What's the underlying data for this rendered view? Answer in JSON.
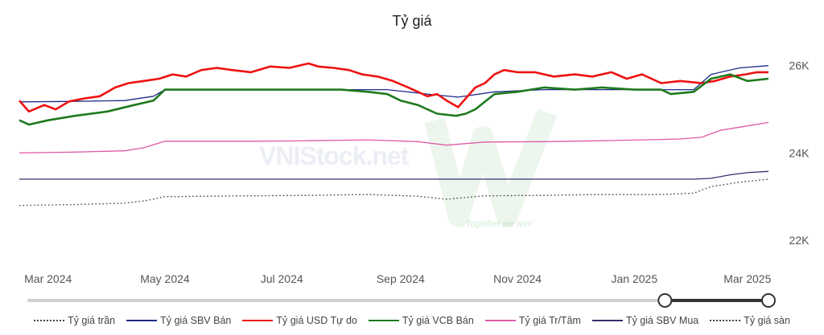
{
  "title": "Tỷ giá",
  "watermark_text": "VNIStock.net",
  "watermark_tagline": "Together we win!",
  "colors": {
    "ceiling": "#444444",
    "sbv_sell": "#1f2a8a",
    "usd_free": "#ee1111",
    "vcb_sell": "#1e7a1e",
    "central": "#e05aa8",
    "sbv_buy": "#3a2f6b",
    "floor": "#444444"
  },
  "chart_data": {
    "type": "line",
    "title": "Tỷ giá",
    "x_range": [
      "2024-02-15",
      "2025-03-12"
    ],
    "x_ticks": [
      "Mar 2024",
      "May 2024",
      "Jul 2024",
      "Sep 2024",
      "Nov 2024",
      "Jan 2025",
      "Mar 2025"
    ],
    "y_ticks": [
      "26K",
      "24K",
      "22K"
    ],
    "ylim": [
      21800,
      26400
    ],
    "grid": false,
    "legend_position": "bottom",
    "slider_range": [
      0.86,
      1.0
    ],
    "series": [
      {
        "name": "Tỷ giá trần",
        "key": "ceiling",
        "style": "dotted",
        "x": [
          "2024-02-15",
          "2024-03-15",
          "2024-04-10",
          "2024-04-20",
          "2024-05-01",
          "2024-06-15",
          "2024-07-15",
          "2024-08-15",
          "2024-09-10",
          "2024-09-25",
          "2024-10-15",
          "2024-11-15",
          "2024-12-15",
          "2025-01-15",
          "2025-02-01",
          "2025-02-10",
          "2025-02-25",
          "2025-03-12"
        ],
        "y": [
          22800,
          22820,
          22850,
          22900,
          23000,
          23020,
          23030,
          23050,
          23010,
          22940,
          23020,
          23030,
          23050,
          23050,
          23080,
          23230,
          23330,
          23400
        ]
      },
      {
        "name": "Tỷ giá SBV Bán",
        "key": "sbv_sell",
        "style": "solid",
        "x": [
          "2024-02-15",
          "2024-03-10",
          "2024-04-10",
          "2024-04-25",
          "2024-05-01",
          "2024-06-15",
          "2024-07-15",
          "2024-08-15",
          "2024-08-25",
          "2024-09-15",
          "2024-10-01",
          "2024-10-20",
          "2024-11-15",
          "2024-12-15",
          "2025-01-15",
          "2025-02-01",
          "2025-02-10",
          "2025-02-25",
          "2025-03-12"
        ],
        "y": [
          25170,
          25180,
          25200,
          25300,
          25450,
          25450,
          25450,
          25450,
          25450,
          25350,
          25280,
          25400,
          25450,
          25450,
          25450,
          25450,
          25800,
          25950,
          26000
        ]
      },
      {
        "name": "Tỷ giá USD Tự do",
        "key": "usd_free",
        "style": "solid",
        "x": [
          "2024-02-15",
          "2024-02-20",
          "2024-02-28",
          "2024-03-05",
          "2024-03-12",
          "2024-03-20",
          "2024-03-28",
          "2024-04-05",
          "2024-04-12",
          "2024-04-20",
          "2024-04-28",
          "2024-05-05",
          "2024-05-12",
          "2024-05-20",
          "2024-05-28",
          "2024-06-05",
          "2024-06-15",
          "2024-06-25",
          "2024-07-05",
          "2024-07-15",
          "2024-07-20",
          "2024-07-28",
          "2024-08-05",
          "2024-08-12",
          "2024-08-20",
          "2024-08-28",
          "2024-09-05",
          "2024-09-10",
          "2024-09-15",
          "2024-09-20",
          "2024-09-25",
          "2024-10-01",
          "2024-10-05",
          "2024-10-10",
          "2024-10-15",
          "2024-10-20",
          "2024-10-25",
          "2024-11-01",
          "2024-11-10",
          "2024-11-20",
          "2024-12-01",
          "2024-12-10",
          "2024-12-20",
          "2024-12-28",
          "2025-01-05",
          "2025-01-15",
          "2025-01-25",
          "2025-02-05",
          "2025-02-12",
          "2025-02-20",
          "2025-02-28",
          "2025-03-06",
          "2025-03-12"
        ],
        "y": [
          25200,
          24950,
          25100,
          25000,
          25180,
          25250,
          25300,
          25500,
          25600,
          25650,
          25700,
          25800,
          25750,
          25900,
          25950,
          25900,
          25850,
          25980,
          25950,
          26050,
          25980,
          25950,
          25900,
          25800,
          25750,
          25650,
          25500,
          25400,
          25300,
          25350,
          25200,
          25050,
          25250,
          25500,
          25600,
          25800,
          25900,
          25850,
          25850,
          25750,
          25800,
          25750,
          25850,
          25700,
          25800,
          25600,
          25650,
          25600,
          25650,
          25750,
          25800,
          25850,
          25850
        ]
      },
      {
        "name": "Tỷ giá VCB Bán",
        "key": "vcb_sell",
        "style": "solid",
        "x": [
          "2024-02-15",
          "2024-02-20",
          "2024-03-01",
          "2024-03-15",
          "2024-04-01",
          "2024-04-15",
          "2024-04-25",
          "2024-05-01",
          "2024-06-01",
          "2024-07-01",
          "2024-08-01",
          "2024-08-15",
          "2024-08-25",
          "2024-09-01",
          "2024-09-10",
          "2024-09-20",
          "2024-09-30",
          "2024-10-05",
          "2024-10-10",
          "2024-10-20",
          "2024-11-01",
          "2024-11-15",
          "2024-12-01",
          "2024-12-15",
          "2025-01-01",
          "2025-01-15",
          "2025-01-20",
          "2025-02-01",
          "2025-02-10",
          "2025-02-20",
          "2025-03-01",
          "2025-03-12"
        ],
        "y": [
          24750,
          24650,
          24750,
          24850,
          24950,
          25100,
          25200,
          25450,
          25450,
          25450,
          25450,
          25400,
          25350,
          25200,
          25100,
          24900,
          24850,
          24900,
          25000,
          25350,
          25400,
          25500,
          25450,
          25500,
          25450,
          25450,
          25350,
          25400,
          25700,
          25800,
          25650,
          25700
        ]
      },
      {
        "name": "Tỷ giá Tr/Tâm",
        "key": "central",
        "style": "solid",
        "x": [
          "2024-02-15",
          "2024-03-15",
          "2024-04-10",
          "2024-04-20",
          "2024-05-01",
          "2024-06-15",
          "2024-07-15",
          "2024-08-15",
          "2024-09-10",
          "2024-09-25",
          "2024-10-15",
          "2024-11-15",
          "2024-12-15",
          "2025-01-15",
          "2025-01-25",
          "2025-02-05",
          "2025-02-15",
          "2025-03-01",
          "2025-03-12"
        ],
        "y": [
          24000,
          24020,
          24050,
          24120,
          24270,
          24270,
          24280,
          24300,
          24260,
          24180,
          24250,
          24260,
          24280,
          24310,
          24320,
          24360,
          24520,
          24620,
          24700
        ]
      },
      {
        "name": "Tỷ giá SBV Mua",
        "key": "sbv_buy",
        "style": "solid",
        "x": [
          "2024-02-15",
          "2024-06-15",
          "2024-10-15",
          "2025-02-01",
          "2025-02-10",
          "2025-02-20",
          "2025-03-01",
          "2025-03-12"
        ],
        "y": [
          23400,
          23400,
          23400,
          23400,
          23420,
          23500,
          23550,
          23580
        ]
      },
      {
        "name": "Tỷ giá sàn",
        "key": "floor",
        "style": "dotted",
        "x": [
          "2024-02-15",
          "2024-03-15",
          "2024-04-10",
          "2024-04-20",
          "2024-05-01",
          "2024-06-15",
          "2024-07-15",
          "2024-08-15",
          "2024-09-10",
          "2024-09-25",
          "2024-10-15",
          "2024-11-15",
          "2024-12-15",
          "2025-01-15",
          "2025-02-01",
          "2025-02-10",
          "2025-02-25",
          "2025-03-12"
        ],
        "y": [
          22800,
          22820,
          22850,
          22900,
          23000,
          23020,
          23030,
          23050,
          23010,
          22940,
          23020,
          23030,
          23050,
          23050,
          23080,
          23230,
          23330,
          23400
        ]
      }
    ]
  }
}
